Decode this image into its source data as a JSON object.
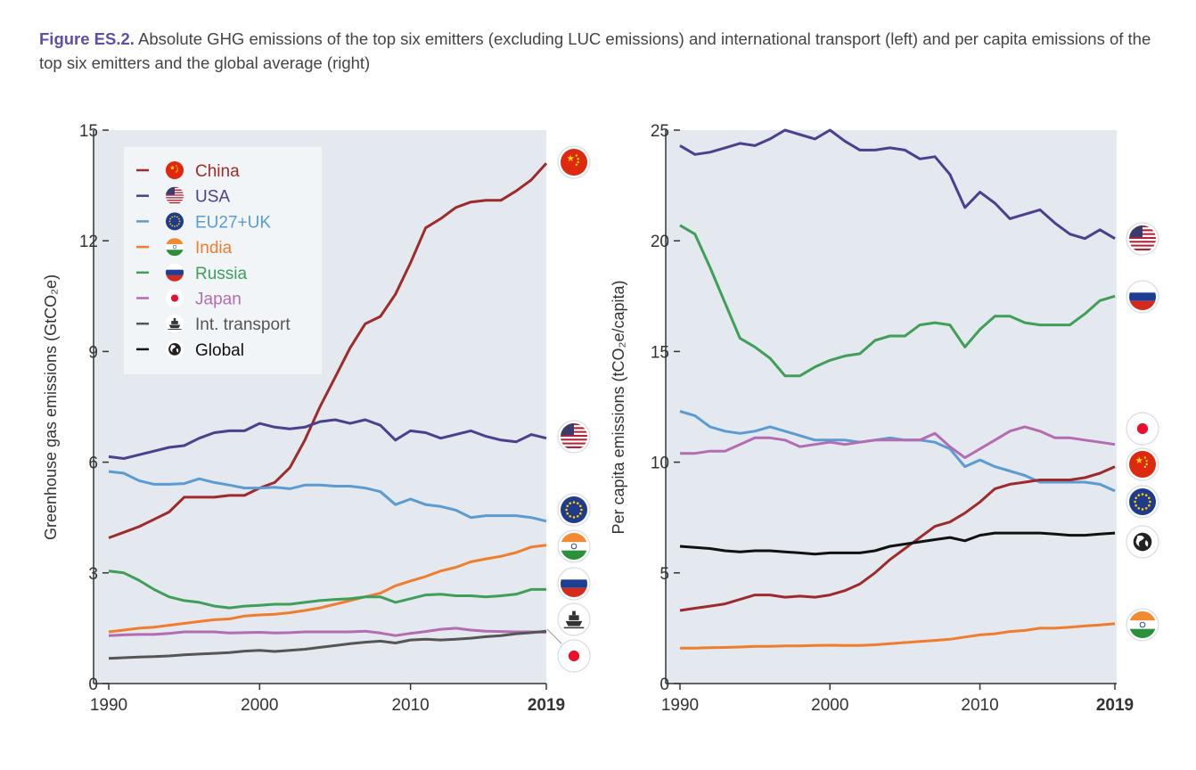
{
  "caption": {
    "figure_label": "Figure ES.2.",
    "text": "Absolute GHG emissions of the top six emitters (excluding LUC emissions) and international transport (left) and per capita emissions of the top six emitters and the global average (right)"
  },
  "colors": {
    "China": "#9e2a2b",
    "USA": "#4c3f8f",
    "EU27+UK": "#5b9bd1",
    "India": "#ef7d2d",
    "Russia": "#3f9e57",
    "Japan": "#b46bb2",
    "Int. transport": "#555555",
    "Global": "#111111",
    "plot_bg": "#e3e9ee"
  },
  "legend": [
    {
      "name": "China",
      "icon": "china-flag-icon"
    },
    {
      "name": "USA",
      "icon": "usa-flag-icon"
    },
    {
      "name": "EU27+UK",
      "icon": "eu-flag-icon"
    },
    {
      "name": "India",
      "icon": "india-flag-icon"
    },
    {
      "name": "Russia",
      "icon": "russia-flag-icon"
    },
    {
      "name": "Japan",
      "icon": "japan-flag-icon"
    },
    {
      "name": "Int. transport",
      "icon": "ship-icon"
    },
    {
      "name": "Global",
      "icon": "globe-icon"
    }
  ],
  "chart_data": [
    {
      "type": "line",
      "ylabel": "Greenhouse gas emissions (GtCO₂e)",
      "ylim": [
        0,
        15
      ],
      "yticks": [
        0,
        3,
        6,
        9,
        12,
        15
      ],
      "xlim": [
        1990,
        2019
      ],
      "xticks": [
        1990,
        2000,
        2010,
        2019
      ],
      "xtick_labels": [
        "1990",
        "2000",
        "2010",
        "2019"
      ],
      "x": [
        1990,
        1991,
        1992,
        1993,
        1994,
        1995,
        1996,
        1997,
        1998,
        1999,
        2000,
        2001,
        2002,
        2003,
        2004,
        2005,
        2006,
        2007,
        2008,
        2009,
        2010,
        2011,
        2012,
        2013,
        2014,
        2015,
        2016,
        2017,
        2018,
        2019
      ],
      "legend_position": "top-left",
      "grid": false,
      "series": [
        {
          "name": "China",
          "values": [
            3.95,
            4.1,
            4.25,
            4.45,
            4.65,
            5.05,
            5.05,
            5.05,
            5.1,
            5.1,
            5.3,
            5.45,
            5.85,
            6.6,
            7.5,
            8.3,
            9.1,
            9.75,
            9.95,
            10.55,
            11.4,
            12.35,
            12.6,
            12.9,
            13.05,
            13.1,
            13.1,
            13.35,
            13.65,
            14.1
          ]
        },
        {
          "name": "USA",
          "values": [
            6.15,
            6.1,
            6.2,
            6.3,
            6.4,
            6.45,
            6.65,
            6.8,
            6.85,
            6.85,
            7.05,
            6.95,
            6.9,
            6.95,
            7.1,
            7.15,
            7.05,
            7.15,
            7.0,
            6.6,
            6.85,
            6.8,
            6.65,
            6.75,
            6.85,
            6.7,
            6.6,
            6.55,
            6.75,
            6.65
          ]
        },
        {
          "name": "EU27+UK",
          "values": [
            5.75,
            5.7,
            5.5,
            5.4,
            5.4,
            5.42,
            5.55,
            5.45,
            5.38,
            5.3,
            5.3,
            5.32,
            5.28,
            5.38,
            5.38,
            5.35,
            5.35,
            5.3,
            5.2,
            4.85,
            5.0,
            4.85,
            4.8,
            4.7,
            4.5,
            4.55,
            4.55,
            4.55,
            4.5,
            4.4
          ]
        },
        {
          "name": "India",
          "values": [
            1.4,
            1.45,
            1.5,
            1.53,
            1.58,
            1.63,
            1.68,
            1.73,
            1.75,
            1.83,
            1.86,
            1.88,
            1.92,
            1.98,
            2.05,
            2.15,
            2.25,
            2.35,
            2.45,
            2.65,
            2.78,
            2.9,
            3.05,
            3.15,
            3.3,
            3.38,
            3.45,
            3.55,
            3.7,
            3.75
          ]
        },
        {
          "name": "Russia",
          "values": [
            3.05,
            3.0,
            2.8,
            2.55,
            2.35,
            2.25,
            2.2,
            2.1,
            2.05,
            2.1,
            2.12,
            2.15,
            2.15,
            2.2,
            2.25,
            2.28,
            2.3,
            2.35,
            2.35,
            2.2,
            2.3,
            2.4,
            2.42,
            2.38,
            2.38,
            2.35,
            2.38,
            2.42,
            2.55,
            2.55
          ]
        },
        {
          "name": "Japan",
          "values": [
            1.3,
            1.32,
            1.33,
            1.33,
            1.36,
            1.4,
            1.4,
            1.4,
            1.37,
            1.38,
            1.39,
            1.37,
            1.38,
            1.4,
            1.4,
            1.4,
            1.4,
            1.42,
            1.37,
            1.3,
            1.36,
            1.41,
            1.47,
            1.5,
            1.45,
            1.42,
            1.41,
            1.4,
            1.4,
            1.39
          ]
        },
        {
          "name": "Int. transport",
          "values": [
            0.68,
            0.7,
            0.72,
            0.73,
            0.75,
            0.78,
            0.8,
            0.82,
            0.84,
            0.88,
            0.9,
            0.87,
            0.9,
            0.93,
            0.98,
            1.03,
            1.08,
            1.12,
            1.15,
            1.1,
            1.18,
            1.2,
            1.18,
            1.2,
            1.23,
            1.27,
            1.3,
            1.35,
            1.38,
            1.42
          ]
        }
      ]
    },
    {
      "type": "line",
      "ylabel": "Per capita emissions (tCO₂e/capita)",
      "ylim": [
        0,
        25
      ],
      "yticks": [
        0,
        5,
        10,
        15,
        20,
        25
      ],
      "xlim": [
        1990,
        2019
      ],
      "xticks": [
        1990,
        2000,
        2010,
        2019
      ],
      "xtick_labels": [
        "1990",
        "2000",
        "2010",
        "2019"
      ],
      "x": [
        1990,
        1991,
        1992,
        1993,
        1994,
        1995,
        1996,
        1997,
        1998,
        1999,
        2000,
        2001,
        2002,
        2003,
        2004,
        2005,
        2006,
        2007,
        2008,
        2009,
        2010,
        2011,
        2012,
        2013,
        2014,
        2015,
        2016,
        2017,
        2018,
        2019
      ],
      "grid": false,
      "series": [
        {
          "name": "USA",
          "values": [
            24.3,
            23.9,
            24.0,
            24.2,
            24.4,
            24.3,
            24.6,
            25.0,
            24.8,
            24.6,
            25.0,
            24.5,
            24.1,
            24.1,
            24.2,
            24.1,
            23.7,
            23.8,
            23.0,
            21.5,
            22.2,
            21.7,
            21.0,
            21.2,
            21.4,
            20.8,
            20.3,
            20.1,
            20.5,
            20.1
          ]
        },
        {
          "name": "Russia",
          "values": [
            20.7,
            20.3,
            18.8,
            17.2,
            15.6,
            15.2,
            14.7,
            13.9,
            13.9,
            14.3,
            14.6,
            14.8,
            14.9,
            15.5,
            15.7,
            15.7,
            16.2,
            16.3,
            16.2,
            15.2,
            16.0,
            16.6,
            16.6,
            16.3,
            16.2,
            16.2,
            16.2,
            16.7,
            17.3,
            17.5
          ]
        },
        {
          "name": "EU27+UK",
          "values": [
            12.3,
            12.1,
            11.6,
            11.4,
            11.3,
            11.4,
            11.6,
            11.4,
            11.2,
            11.0,
            11.0,
            11.0,
            10.9,
            11.0,
            11.1,
            11.0,
            11.0,
            10.9,
            10.6,
            9.8,
            10.1,
            9.8,
            9.6,
            9.4,
            9.1,
            9.1,
            9.1,
            9.1,
            9.0,
            8.7
          ]
        },
        {
          "name": "Japan",
          "values": [
            10.4,
            10.4,
            10.5,
            10.5,
            10.8,
            11.1,
            11.1,
            11.0,
            10.7,
            10.8,
            10.9,
            10.8,
            10.9,
            11.0,
            11.0,
            11.0,
            11.0,
            11.3,
            10.7,
            10.2,
            10.6,
            11.0,
            11.4,
            11.6,
            11.4,
            11.1,
            11.1,
            11.0,
            10.9,
            10.8
          ]
        },
        {
          "name": "China",
          "values": [
            3.3,
            3.4,
            3.5,
            3.6,
            3.8,
            4.0,
            4.0,
            3.9,
            3.95,
            3.9,
            4.0,
            4.2,
            4.5,
            5.0,
            5.6,
            6.1,
            6.6,
            7.1,
            7.3,
            7.7,
            8.2,
            8.8,
            9.0,
            9.1,
            9.2,
            9.2,
            9.2,
            9.3,
            9.5,
            9.8
          ]
        },
        {
          "name": "Global",
          "values": [
            6.2,
            6.15,
            6.1,
            6.0,
            5.95,
            6.0,
            6.0,
            5.95,
            5.9,
            5.85,
            5.9,
            5.9,
            5.9,
            6.0,
            6.2,
            6.3,
            6.4,
            6.5,
            6.6,
            6.45,
            6.7,
            6.8,
            6.8,
            6.8,
            6.8,
            6.75,
            6.7,
            6.7,
            6.75,
            6.8
          ]
        },
        {
          "name": "India",
          "values": [
            1.6,
            1.6,
            1.62,
            1.63,
            1.65,
            1.68,
            1.68,
            1.7,
            1.7,
            1.72,
            1.73,
            1.72,
            1.72,
            1.75,
            1.8,
            1.85,
            1.9,
            1.95,
            2.0,
            2.1,
            2.2,
            2.25,
            2.35,
            2.4,
            2.5,
            2.5,
            2.55,
            2.6,
            2.65,
            2.7
          ]
        }
      ]
    }
  ]
}
